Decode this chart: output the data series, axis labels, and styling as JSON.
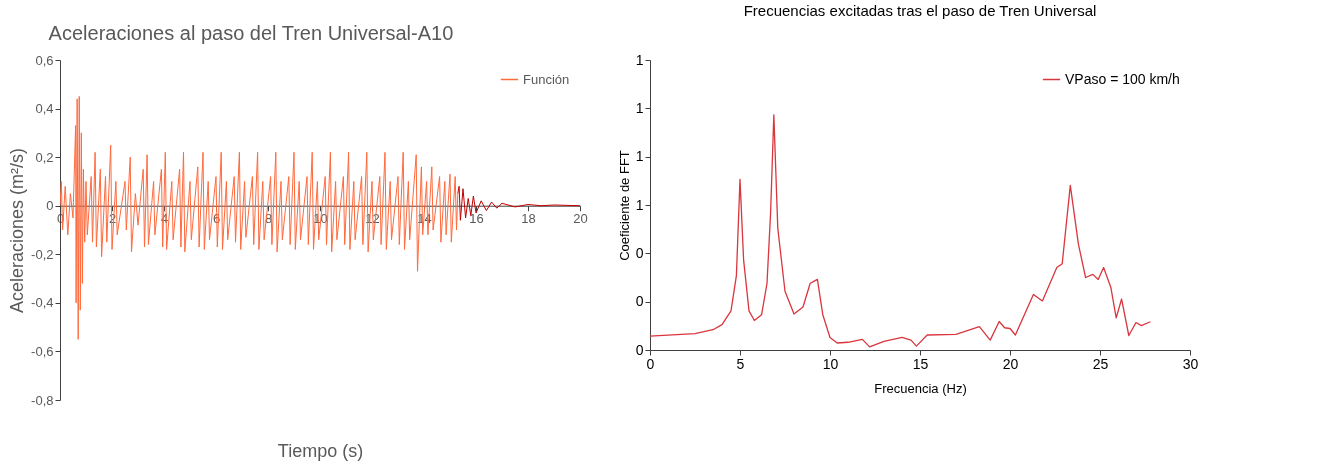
{
  "chart_data": [
    {
      "type": "line",
      "title": "Aceleraciones al paso del Tren Universal-A10",
      "xlabel": "Tiempo (s)",
      "ylabel": "Aceleraciones (m²/s)",
      "xlim": [
        0,
        20
      ],
      "xticks": [
        0,
        2,
        4,
        6,
        8,
        10,
        12,
        14,
        16,
        18,
        20
      ],
      "ylim": [
        -0.8,
        0.6
      ],
      "yticks": [
        {
          "value": -0.8,
          "label": "-0,8"
        },
        {
          "value": -0.6,
          "label": "-0,6"
        },
        {
          "value": -0.4,
          "label": "-0,4"
        },
        {
          "value": -0.2,
          "label": "-0,2"
        },
        0,
        {
          "value": 0.2,
          "label": "0,2"
        },
        {
          "value": 0.4,
          "label": "0,4"
        },
        {
          "value": 0.6,
          "label": "0,6"
        }
      ],
      "legend": "top right",
      "series": [
        {
          "name": "Función",
          "color": "#ff6a3d",
          "x": [
            0,
            0.05,
            0.1,
            0.2,
            0.3,
            0.4,
            0.5,
            0.6,
            0.62,
            0.66,
            0.7,
            0.74,
            0.78,
            0.82,
            0.86,
            0.9,
            0.95,
            1.0,
            1.05,
            1.2,
            1.25,
            1.35,
            1.4,
            1.55,
            1.6,
            1.75,
            1.8,
            1.95,
            2.0,
            2.15,
            2.2,
            2.5,
            2.55,
            2.7,
            2.75,
            2.9,
            3.0,
            3.2,
            3.25,
            3.35,
            3.4,
            3.6,
            3.65,
            3.9,
            3.95,
            4.05,
            4.1,
            4.3,
            4.35,
            4.6,
            4.65,
            4.75,
            4.8,
            5.0,
            5.05,
            5.3,
            5.35,
            5.5,
            5.55,
            5.7,
            5.75,
            6.0,
            6.05,
            6.2,
            6.25,
            6.4,
            6.45,
            6.7,
            6.75,
            6.9,
            6.95,
            7.1,
            7.15,
            7.4,
            7.45,
            7.6,
            7.65,
            7.8,
            7.85,
            8.1,
            8.15,
            8.3,
            8.35,
            8.5,
            8.55,
            8.8,
            8.85,
            9.0,
            9.05,
            9.2,
            9.25,
            9.5,
            9.55,
            9.7,
            9.75,
            9.9,
            9.95,
            10.2,
            10.25,
            10.4,
            10.45,
            10.6,
            10.65,
            10.9,
            10.95,
            11.1,
            11.15,
            11.3,
            11.35,
            11.6,
            11.65,
            11.8,
            11.85,
            12.0,
            12.05,
            12.3,
            12.35,
            12.5,
            12.55,
            12.7,
            12.75,
            13.0,
            13.05,
            13.2,
            13.25,
            13.4,
            13.45,
            13.7,
            13.75,
            13.9,
            13.95,
            14.1,
            14.15,
            14.3,
            14.35,
            14.6,
            14.65,
            14.8,
            14.85,
            15.0,
            15.05,
            15.2,
            15.25,
            15.3
          ],
          "values": [
            0,
            0.1,
            -0.1,
            0.08,
            -0.12,
            0.05,
            -0.05,
            0.33,
            -0.4,
            0.44,
            -0.55,
            0.45,
            -0.43,
            0.3,
            -0.32,
            0.15,
            -0.15,
            0.1,
            -0.12,
            0.12,
            -0.15,
            0.22,
            -0.17,
            0.15,
            -0.21,
            0.12,
            -0.15,
            0.25,
            -0.18,
            0.1,
            -0.12,
            0.1,
            -0.1,
            0.2,
            -0.19,
            0.05,
            -0.08,
            0.15,
            -0.17,
            0.21,
            -0.16,
            0.1,
            -0.12,
            0.15,
            -0.17,
            0.22,
            -0.18,
            0.1,
            -0.14,
            0.15,
            -0.17,
            0.22,
            -0.19,
            0.1,
            -0.14,
            0.16,
            -0.17,
            0.22,
            -0.18,
            0.1,
            -0.14,
            0.12,
            -0.17,
            0.22,
            -0.18,
            0.1,
            -0.14,
            0.12,
            -0.15,
            0.22,
            -0.18,
            0.1,
            -0.13,
            0.12,
            -0.16,
            0.22,
            -0.18,
            0.1,
            -0.14,
            0.12,
            -0.16,
            0.22,
            -0.19,
            0.1,
            -0.14,
            0.12,
            -0.16,
            0.22,
            -0.18,
            0.1,
            -0.14,
            0.12,
            -0.16,
            0.22,
            -0.18,
            0.1,
            -0.14,
            0.12,
            -0.16,
            0.22,
            -0.19,
            0.1,
            -0.14,
            0.12,
            -0.16,
            0.22,
            -0.18,
            0.1,
            -0.14,
            0.12,
            -0.16,
            0.22,
            -0.19,
            0.1,
            -0.14,
            0.12,
            -0.16,
            0.22,
            -0.18,
            0.1,
            -0.14,
            0.12,
            -0.16,
            0.22,
            -0.18,
            0.1,
            -0.14,
            0.21,
            -0.27,
            0.16,
            -0.12,
            0.1,
            -0.12,
            0.16,
            -0.1,
            0.12,
            -0.15,
            0.1,
            -0.12,
            0.13,
            -0.15,
            0.12,
            -0.1,
            0.05
          ]
        },
        {
          "color": "#c00000",
          "x": [
            15.3,
            15.35,
            15.4,
            15.5,
            15.6,
            15.7,
            15.8,
            15.9,
            16.0,
            16.2,
            16.4,
            16.6,
            16.8,
            17.0,
            17.5,
            18.0,
            18.5,
            19.0,
            20.0
          ],
          "values": [
            0.05,
            0.08,
            -0.06,
            0.07,
            -0.05,
            0.03,
            -0.04,
            0.04,
            -0.03,
            0.02,
            -0.02,
            0.015,
            -0.01,
            0.01,
            -0.005,
            0.005,
            0,
            0.003,
            0
          ]
        }
      ]
    },
    {
      "type": "line",
      "title": "Frecuencias excitadas tras el paso de Tren Universal",
      "xlabel": "Frecuencia (Hz)",
      "ylabel": "Coeficiente de FFT",
      "xlim": [
        0,
        30
      ],
      "xticks": [
        0,
        5,
        10,
        15,
        20,
        25,
        30
      ],
      "ylim": [
        0,
        1.2
      ],
      "yticks": [
        0,
        {
          "value": 0.2,
          "label": "0"
        },
        {
          "value": 0.4,
          "label": "0"
        },
        {
          "value": 0.6,
          "label": "1"
        },
        {
          "value": 0.8,
          "label": "1"
        },
        {
          "value": 1.0,
          "label": "1"
        },
        {
          "value": 1.2,
          "label": "1"
        }
      ],
      "legend": "top right",
      "series": [
        {
          "name": "VPaso = 100 km/h",
          "color": "#d9363e",
          "x": [
            0,
            2.5,
            3.5,
            4,
            4.5,
            4.8,
            5.0,
            5.2,
            5.5,
            5.8,
            6.2,
            6.5,
            6.7,
            6.88,
            7.1,
            7.5,
            8,
            8.5,
            8.9,
            9.1,
            9.3,
            9.6,
            10,
            10.4,
            11,
            11.8,
            12.2,
            13,
            14,
            14.5,
            14.8,
            15.4,
            17,
            18.3,
            18.9,
            19.4,
            19.7,
            20,
            20.3,
            21.3,
            21.8,
            22.6,
            22.9,
            23.35,
            23.8,
            24.2,
            24.6,
            24.9,
            25.2,
            25.6,
            25.9,
            26.2,
            26.6,
            27,
            27.3,
            27.8
          ],
          "values": [
            0.057,
            0.068,
            0.084,
            0.105,
            0.162,
            0.308,
            0.706,
            0.373,
            0.162,
            0.122,
            0.146,
            0.276,
            0.568,
            0.973,
            0.503,
            0.243,
            0.149,
            0.178,
            0.276,
            0.284,
            0.292,
            0.146,
            0.052,
            0.029,
            0.032,
            0.044,
            0.013,
            0.036,
            0.052,
            0.041,
            0.016,
            0.062,
            0.065,
            0.097,
            0.041,
            0.118,
            0.092,
            0.089,
            0.062,
            0.23,
            0.203,
            0.341,
            0.357,
            0.681,
            0.438,
            0.3,
            0.313,
            0.292,
            0.341,
            0.26,
            0.133,
            0.211,
            0.06,
            0.114,
            0.101,
            0.117
          ]
        }
      ]
    }
  ]
}
